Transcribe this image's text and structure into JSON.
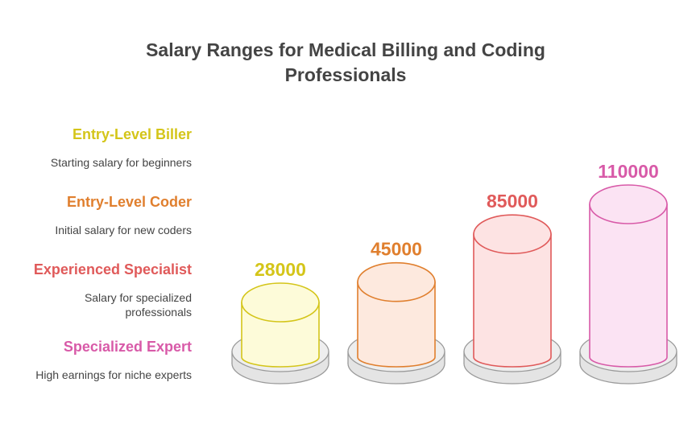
{
  "chart_data": {
    "type": "bar",
    "title": "Salary Ranges for Medical Billing and Coding Professionals",
    "title_lines": [
      "Salary Ranges for Medical Billing and Coding",
      "Professionals"
    ],
    "categories": [
      "Entry-Level Biller",
      "Entry-Level Coder",
      "Experienced Specialist",
      "Specialized Expert"
    ],
    "descriptions": [
      "Starting salary for beginners",
      "Initial salary for new coders",
      "Salary for specialized professionals",
      "High earnings for niche experts"
    ],
    "values": [
      28000,
      45000,
      85000,
      110000
    ],
    "value_labels": [
      "28000",
      "45000",
      "85000",
      "110000"
    ],
    "colors": [
      "#d4c519",
      "#e07f2e",
      "#e05a5a",
      "#d85aa8"
    ],
    "fills": [
      "#fdfbd9",
      "#fde9de",
      "#fde3e3",
      "#fbe3f3"
    ],
    "legend_position": "left"
  }
}
